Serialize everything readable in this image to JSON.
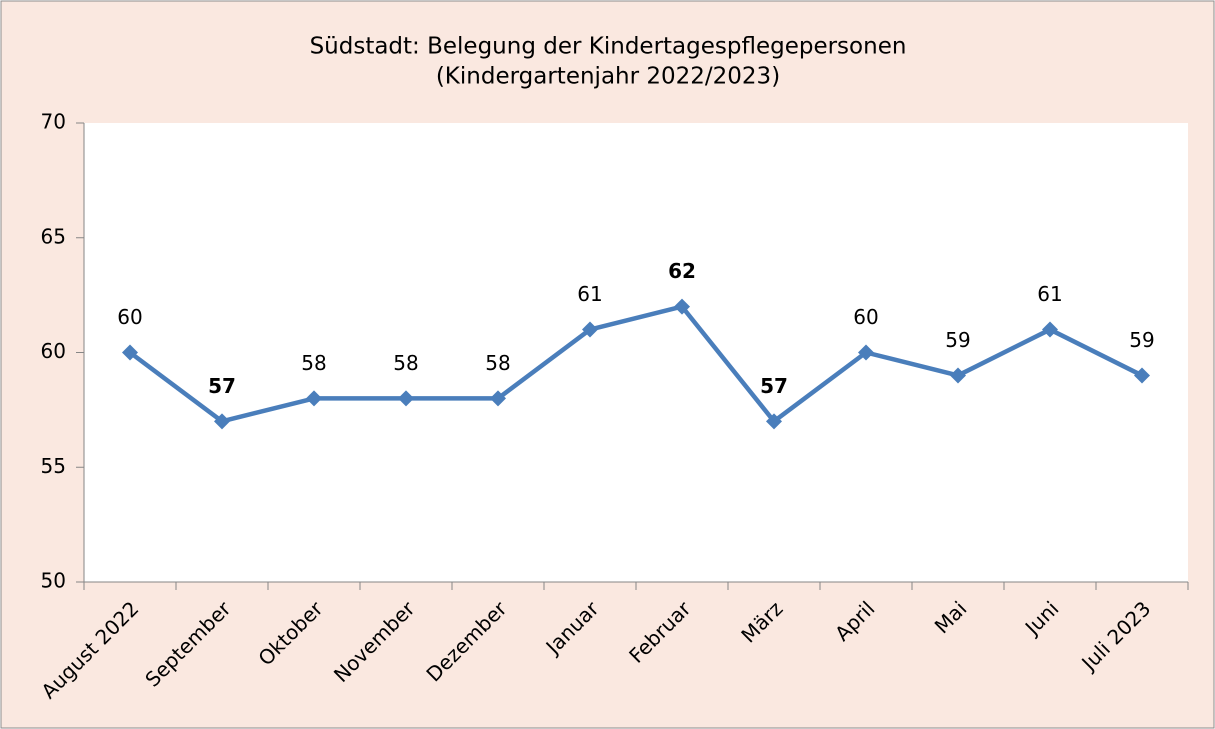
{
  "chart_data": {
    "type": "line",
    "title": "Südstadt: Belegung der Kindertagespflegepersonen",
    "subtitle": "(Kindergartenjahr 2022/2023)",
    "categories": [
      "August 2022",
      "September",
      "Oktober",
      "November",
      "Dezember",
      "Januar",
      "Februar",
      "März",
      "April",
      "Mai",
      "Juni",
      "Juli 2023"
    ],
    "values": [
      60,
      57,
      58,
      58,
      58,
      61,
      62,
      57,
      60,
      59,
      61,
      59
    ],
    "value_label_colors": [
      "#000000",
      "#00b050",
      "#000000",
      "#000000",
      "#000000",
      "#000000",
      "#ff0000",
      "#00b050",
      "#000000",
      "#000000",
      "#000000",
      "#000000"
    ],
    "color": "#4a7ebb",
    "ylim": [
      50,
      70
    ],
    "yticks": [
      50,
      55,
      60,
      65,
      70
    ],
    "grid": false
  }
}
